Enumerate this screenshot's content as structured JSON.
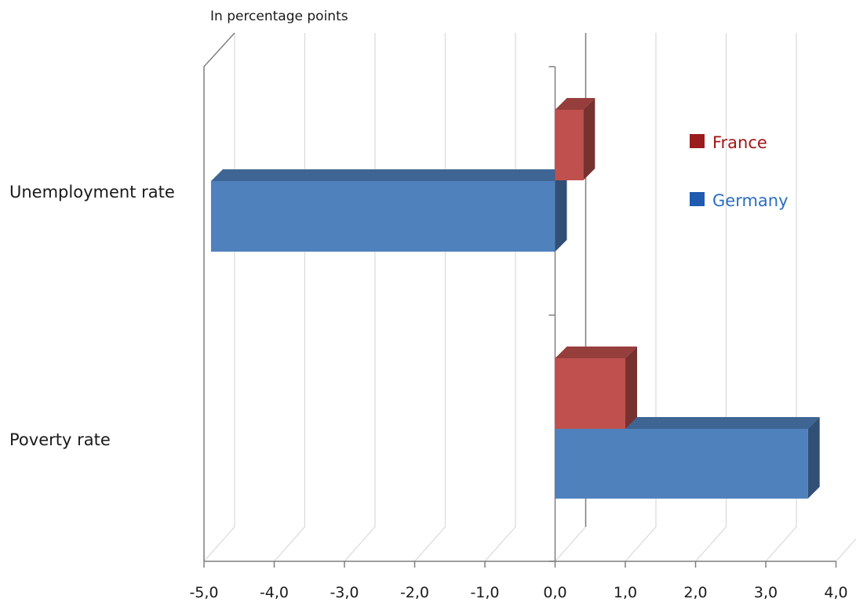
{
  "chart_data": {
    "type": "bar",
    "orientation": "horizontal",
    "subtitle": "In percentage points",
    "categories": [
      "Unemployment rate",
      "Poverty rate"
    ],
    "series": [
      {
        "name": "France",
        "values": [
          0.4,
          1.0
        ],
        "color": "#c0504d"
      },
      {
        "name": "Germany",
        "values": [
          -4.9,
          3.6
        ],
        "color": "#4f81bd"
      }
    ],
    "xlim": [
      -5.0,
      4.0
    ],
    "xticks": [
      "-5,0",
      "-4,0",
      "-3,0",
      "-2,0",
      "-1,0",
      "0,0",
      "1,0",
      "2,0",
      "3,0",
      "4,0"
    ],
    "grid": true,
    "legend_position": "right",
    "legend_colors": {
      "France": "#9b1c1c",
      "Germany": "#1f5bb0"
    },
    "legend_text_colors": {
      "France": "#a31515",
      "Germany": "#2a6ebf"
    }
  }
}
